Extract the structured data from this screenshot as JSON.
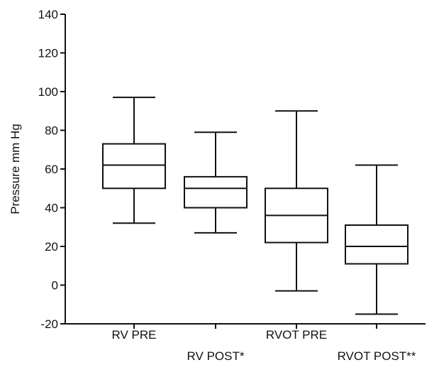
{
  "chart_data": {
    "type": "box",
    "title": "",
    "xlabel": "",
    "ylabel": "Pressure mm Hg",
    "ylim": [
      -20,
      140
    ],
    "yticks": [
      -20,
      0,
      20,
      40,
      60,
      80,
      100,
      120,
      140
    ],
    "grid": false,
    "categories": [
      "RV PRE",
      "RV POST*",
      "RVOT PRE",
      "RVOT POST**"
    ],
    "boxes": [
      {
        "category": "RV PRE",
        "min": 32,
        "q1": 50,
        "median": 62,
        "q3": 73,
        "max": 97
      },
      {
        "category": "RV POST*",
        "min": 27,
        "q1": 40,
        "median": 50,
        "q3": 56,
        "max": 79
      },
      {
        "category": "RVOT PRE",
        "min": -3,
        "q1": 22,
        "median": 36,
        "q3": 50,
        "max": 90
      },
      {
        "category": "RVOT POST**",
        "min": -15,
        "q1": 11,
        "median": 20,
        "q3": 31,
        "max": 62
      }
    ]
  }
}
